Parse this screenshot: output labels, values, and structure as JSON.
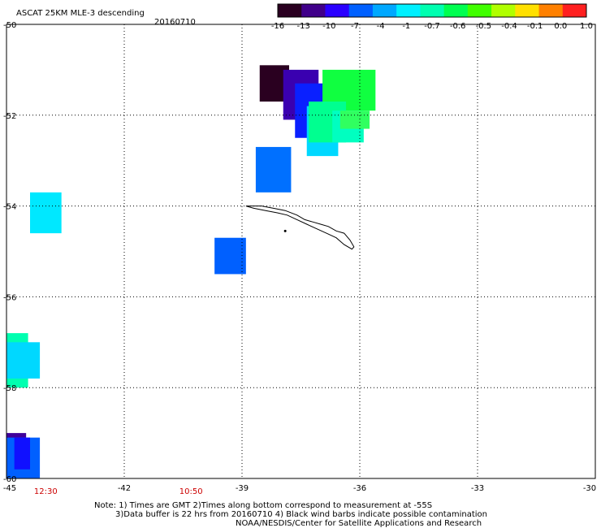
{
  "header": {
    "product": "ASCAT 25KM MLE-3 descending",
    "date": "20160710"
  },
  "colorbar": {
    "labels": [
      "-16",
      "-13",
      "-10",
      "-7",
      "-4",
      "-1",
      "-0.7",
      "-0.6",
      "-0.5",
      "-0.4",
      "-0.1",
      "0.0",
      "1.0"
    ],
    "colors": [
      "#2a0020",
      "#40008a",
      "#2a00ff",
      "#0060ff",
      "#00a8ff",
      "#00f0ff",
      "#00ffb0",
      "#00ff50",
      "#40ff00",
      "#b0ff00",
      "#ffe000",
      "#ff8000",
      "#ff2020"
    ]
  },
  "axes": {
    "lon_labels": [
      "-45",
      "-42",
      "-39",
      "-36",
      "-33",
      "-30"
    ],
    "lat_labels": [
      "-50",
      "-52",
      "-54",
      "-56",
      "-58",
      "-60"
    ],
    "lon_range": [
      -45,
      -30
    ],
    "lat_range": [
      -60,
      -50
    ],
    "grid": "dotted"
  },
  "time_labels": [
    {
      "text": "12:30",
      "lon": -44.0
    },
    {
      "text": "10:50",
      "lon": -40.3
    }
  ],
  "notes": [
    "Note: 1) Times are GMT 2)Times along bottom correspond to measurement at -55S",
    "3)Data buffer is 22 hrs from 20160710 4) Black wind barbs indicate possible contamination",
    "NOAA/NESDIS/Center for Satellite Applications and Research"
  ],
  "data_cells": [
    {
      "lon0": -38.55,
      "lon1": -37.8,
      "lat0": -51.7,
      "lat1": -50.9,
      "color": "#2a0020"
    },
    {
      "lon0": -37.95,
      "lon1": -37.05,
      "lat0": -52.1,
      "lat1": -51.0,
      "color": "#3a00b0"
    },
    {
      "lon0": -37.65,
      "lon1": -36.85,
      "lat0": -52.5,
      "lat1": -51.3,
      "color": "#0a20ff"
    },
    {
      "lon0": -37.35,
      "lon1": -36.55,
      "lat0": -52.9,
      "lat1": -51.8,
      "color": "#00d8ff"
    },
    {
      "lon0": -36.95,
      "lon1": -35.6,
      "lat0": -51.9,
      "lat1": -51.0,
      "color": "#10ff40"
    },
    {
      "lon0": -37.3,
      "lon1": -36.35,
      "lat0": -52.6,
      "lat1": -51.7,
      "color": "#00ff90"
    },
    {
      "lon0": -36.7,
      "lon1": -35.9,
      "lat0": -52.6,
      "lat1": -51.9,
      "color": "#00ffc0"
    },
    {
      "lon0": -36.5,
      "lon1": -35.75,
      "lat0": -52.3,
      "lat1": -51.9,
      "color": "#30ff60"
    },
    {
      "lon0": -38.65,
      "lon1": -37.75,
      "lat0": -53.7,
      "lat1": -52.7,
      "color": "#0070ff"
    },
    {
      "lon0": -44.4,
      "lon1": -43.6,
      "lat0": -54.6,
      "lat1": -53.7,
      "color": "#00e8ff"
    },
    {
      "lon0": -39.7,
      "lon1": -38.9,
      "lat0": -55.5,
      "lat1": -54.7,
      "color": "#0060ff"
    },
    {
      "lon0": -45.0,
      "lon1": -44.45,
      "lat0": -58.0,
      "lat1": -56.8,
      "color": "#00ffb0"
    },
    {
      "lon0": -45.0,
      "lon1": -44.15,
      "lat0": -57.8,
      "lat1": -57.0,
      "color": "#00d8ff"
    },
    {
      "lon0": -45.0,
      "lon1": -44.5,
      "lat0": -59.9,
      "lat1": -59.0,
      "color": "#40009a"
    },
    {
      "lon0": -45.0,
      "lon1": -44.15,
      "lat0": -60.0,
      "lat1": -59.1,
      "color": "#0060ff"
    },
    {
      "lon0": -44.8,
      "lon1": -44.4,
      "lat0": -59.8,
      "lat1": -59.1,
      "color": "#1010ff"
    }
  ],
  "coastline": [
    [
      -38.9,
      -54.0
    ],
    [
      -38.5,
      -54.0
    ],
    [
      -38.2,
      -54.05
    ],
    [
      -37.9,
      -54.1
    ],
    [
      -37.6,
      -54.2
    ],
    [
      -37.4,
      -54.3
    ],
    [
      -37.2,
      -54.35
    ],
    [
      -37.0,
      -54.4
    ],
    [
      -36.8,
      -54.45
    ],
    [
      -36.6,
      -54.55
    ],
    [
      -36.4,
      -54.6
    ],
    [
      -36.25,
      -54.75
    ],
    [
      -36.15,
      -54.9
    ],
    [
      -36.2,
      -54.95
    ],
    [
      -36.4,
      -54.85
    ],
    [
      -36.6,
      -54.7
    ],
    [
      -36.85,
      -54.6
    ],
    [
      -37.1,
      -54.5
    ],
    [
      -37.35,
      -54.4
    ],
    [
      -37.6,
      -54.3
    ],
    [
      -37.85,
      -54.2
    ],
    [
      -38.1,
      -54.15
    ],
    [
      -38.4,
      -54.1
    ],
    [
      -38.7,
      -54.05
    ],
    [
      -38.9,
      -54.0
    ]
  ]
}
